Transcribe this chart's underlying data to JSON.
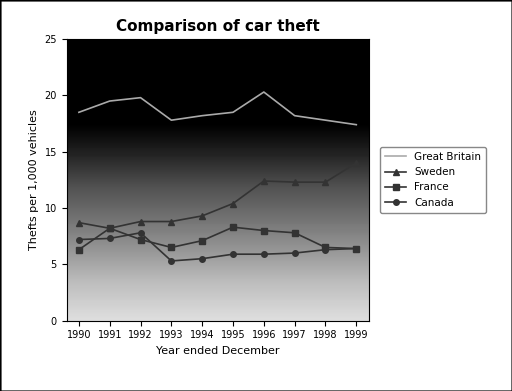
{
  "title": "Comparison of car theft",
  "xlabel": "Year ended December",
  "ylabel": "Thefts per 1,000 vehicles",
  "years": [
    1990,
    1991,
    1992,
    1993,
    1994,
    1995,
    1996,
    1997,
    1998,
    1999
  ],
  "series": {
    "Great Britain": {
      "values": [
        18.5,
        19.5,
        19.8,
        17.8,
        18.2,
        18.5,
        20.3,
        18.2,
        17.8,
        17.4
      ],
      "color": "#aaaaaa",
      "marker": null,
      "linestyle": "-"
    },
    "Sweden": {
      "values": [
        8.7,
        8.2,
        8.8,
        8.8,
        9.3,
        10.4,
        12.4,
        12.3,
        12.3,
        14.0
      ],
      "color": "#333333",
      "marker": "^",
      "linestyle": "-"
    },
    "France": {
      "values": [
        6.3,
        8.2,
        7.2,
        6.5,
        7.1,
        8.3,
        8.0,
        7.8,
        6.5,
        6.4
      ],
      "color": "#333333",
      "marker": "s",
      "linestyle": "-"
    },
    "Canada": {
      "values": [
        7.2,
        7.3,
        7.8,
        5.3,
        5.5,
        5.9,
        5.9,
        6.0,
        6.3,
        6.4
      ],
      "color": "#333333",
      "marker": "o",
      "linestyle": "-"
    }
  },
  "ylim": [
    0,
    25
  ],
  "yticks": [
    0,
    5,
    10,
    15,
    20,
    25
  ],
  "legend_order": [
    "Great Britain",
    "Sweden",
    "France",
    "Canada"
  ],
  "bg_top": "#b0b0b0",
  "bg_bottom": "#f0f0f0",
  "fig_bg": "#ffffff"
}
